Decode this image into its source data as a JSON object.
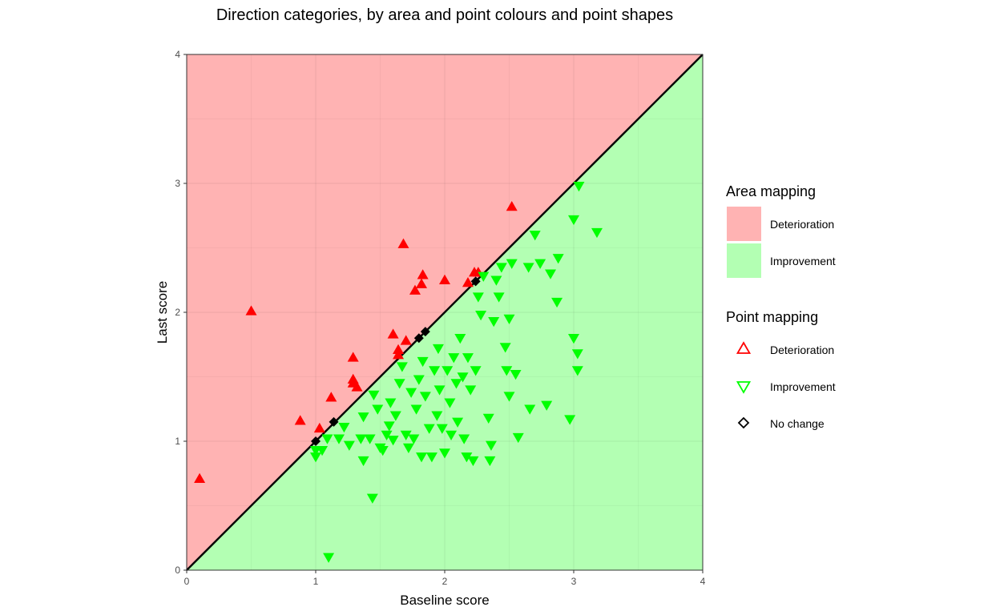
{
  "chart_data": {
    "type": "scatter",
    "title": "Direction categories, by area and point colours and point shapes",
    "xlabel": "Baseline score",
    "ylabel": "Last score",
    "xlim": [
      0,
      4
    ],
    "ylim": [
      0,
      4
    ],
    "x_ticks": [
      "0",
      "1",
      "2",
      "3",
      "4"
    ],
    "y_ticks": [
      "0",
      "1",
      "2",
      "3",
      "4"
    ],
    "grid": true,
    "reference_line": "y = x",
    "area_mapping": {
      "title": "Area mapping",
      "entries": [
        {
          "label": "Deterioration",
          "color": "#ffb3b3",
          "region": "above y = x"
        },
        {
          "label": "Improvement",
          "color": "#b3ffb3",
          "region": "below y = x"
        }
      ]
    },
    "point_mapping": {
      "title": "Point mapping",
      "entries": [
        {
          "label": "Deterioration",
          "shape": "triangle-up",
          "color": "#ff0000"
        },
        {
          "label": "Improvement",
          "shape": "triangle-down",
          "color": "#00ff00"
        },
        {
          "label": "No change",
          "shape": "diamond",
          "color": "#000000"
        }
      ]
    },
    "legend_position": "right",
    "series": [
      {
        "name": "Deterioration",
        "points": [
          [
            0.1,
            0.71
          ],
          [
            0.5,
            2.01
          ],
          [
            0.88,
            1.16
          ],
          [
            1.03,
            1.1
          ],
          [
            1.12,
            1.34
          ],
          [
            1.29,
            1.65
          ],
          [
            1.29,
            1.48
          ],
          [
            1.29,
            1.45
          ],
          [
            1.32,
            1.42
          ],
          [
            1.6,
            1.83
          ],
          [
            1.64,
            1.71
          ],
          [
            1.64,
            1.67
          ],
          [
            1.68,
            2.53
          ],
          [
            1.7,
            1.78
          ],
          [
            1.77,
            2.17
          ],
          [
            1.82,
            2.22
          ],
          [
            1.83,
            2.29
          ],
          [
            2.0,
            2.25
          ],
          [
            2.18,
            2.23
          ],
          [
            2.23,
            2.31
          ],
          [
            2.26,
            2.31
          ],
          [
            2.52,
            2.82
          ]
        ]
      },
      {
        "name": "Improvement",
        "points": [
          [
            1.1,
            0.1
          ],
          [
            1.44,
            0.56
          ],
          [
            1.0,
            0.88
          ],
          [
            1.0,
            0.93
          ],
          [
            1.05,
            0.93
          ],
          [
            1.09,
            1.02
          ],
          [
            1.18,
            1.02
          ],
          [
            1.22,
            1.11
          ],
          [
            1.26,
            0.97
          ],
          [
            1.35,
            1.02
          ],
          [
            1.37,
            0.85
          ],
          [
            1.37,
            1.19
          ],
          [
            1.42,
            1.02
          ],
          [
            1.45,
            1.36
          ],
          [
            1.48,
            1.25
          ],
          [
            1.5,
            0.95
          ],
          [
            1.52,
            0.93
          ],
          [
            1.55,
            1.05
          ],
          [
            1.57,
            1.12
          ],
          [
            1.58,
            1.3
          ],
          [
            1.6,
            1.01
          ],
          [
            1.62,
            1.2
          ],
          [
            1.65,
            1.45
          ],
          [
            1.67,
            1.58
          ],
          [
            1.7,
            1.05
          ],
          [
            1.72,
            0.95
          ],
          [
            1.74,
            1.38
          ],
          [
            1.76,
            1.02
          ],
          [
            1.78,
            1.25
          ],
          [
            1.8,
            1.48
          ],
          [
            1.82,
            0.88
          ],
          [
            1.83,
            1.62
          ],
          [
            1.85,
            1.35
          ],
          [
            1.88,
            1.1
          ],
          [
            1.9,
            0.88
          ],
          [
            1.92,
            1.55
          ],
          [
            1.94,
            1.2
          ],
          [
            1.95,
            1.72
          ],
          [
            1.96,
            1.4
          ],
          [
            1.98,
            1.1
          ],
          [
            2.0,
            0.91
          ],
          [
            2.02,
            1.55
          ],
          [
            2.04,
            1.3
          ],
          [
            2.05,
            1.05
          ],
          [
            2.07,
            1.65
          ],
          [
            2.09,
            1.45
          ],
          [
            2.1,
            1.15
          ],
          [
            2.12,
            1.8
          ],
          [
            2.14,
            1.5
          ],
          [
            2.15,
            1.02
          ],
          [
            2.17,
            0.88
          ],
          [
            2.18,
            1.65
          ],
          [
            2.2,
            1.4
          ],
          [
            2.22,
            0.85
          ],
          [
            2.24,
            1.55
          ],
          [
            2.26,
            2.12
          ],
          [
            2.28,
            1.98
          ],
          [
            2.3,
            2.28
          ],
          [
            2.34,
            1.18
          ],
          [
            2.35,
            0.85
          ],
          [
            2.36,
            0.97
          ],
          [
            2.38,
            1.93
          ],
          [
            2.4,
            2.25
          ],
          [
            2.42,
            2.12
          ],
          [
            2.44,
            2.35
          ],
          [
            2.47,
            1.73
          ],
          [
            2.48,
            1.55
          ],
          [
            2.5,
            1.95
          ],
          [
            2.5,
            1.35
          ],
          [
            2.52,
            2.38
          ],
          [
            2.55,
            1.52
          ],
          [
            2.57,
            1.03
          ],
          [
            2.65,
            2.35
          ],
          [
            2.66,
            1.25
          ],
          [
            2.7,
            2.6
          ],
          [
            2.74,
            2.38
          ],
          [
            2.79,
            1.28
          ],
          [
            2.82,
            2.3
          ],
          [
            2.87,
            2.08
          ],
          [
            2.88,
            2.42
          ],
          [
            2.97,
            1.17
          ],
          [
            3.0,
            1.8
          ],
          [
            3.0,
            2.72
          ],
          [
            3.03,
            1.68
          ],
          [
            3.03,
            1.55
          ],
          [
            3.04,
            2.98
          ],
          [
            3.18,
            2.62
          ]
        ]
      },
      {
        "name": "No change",
        "points": [
          [
            1.0,
            1.0
          ],
          [
            1.14,
            1.15
          ],
          [
            1.8,
            1.8
          ],
          [
            1.85,
            1.85
          ],
          [
            2.24,
            2.24
          ]
        ]
      }
    ]
  }
}
